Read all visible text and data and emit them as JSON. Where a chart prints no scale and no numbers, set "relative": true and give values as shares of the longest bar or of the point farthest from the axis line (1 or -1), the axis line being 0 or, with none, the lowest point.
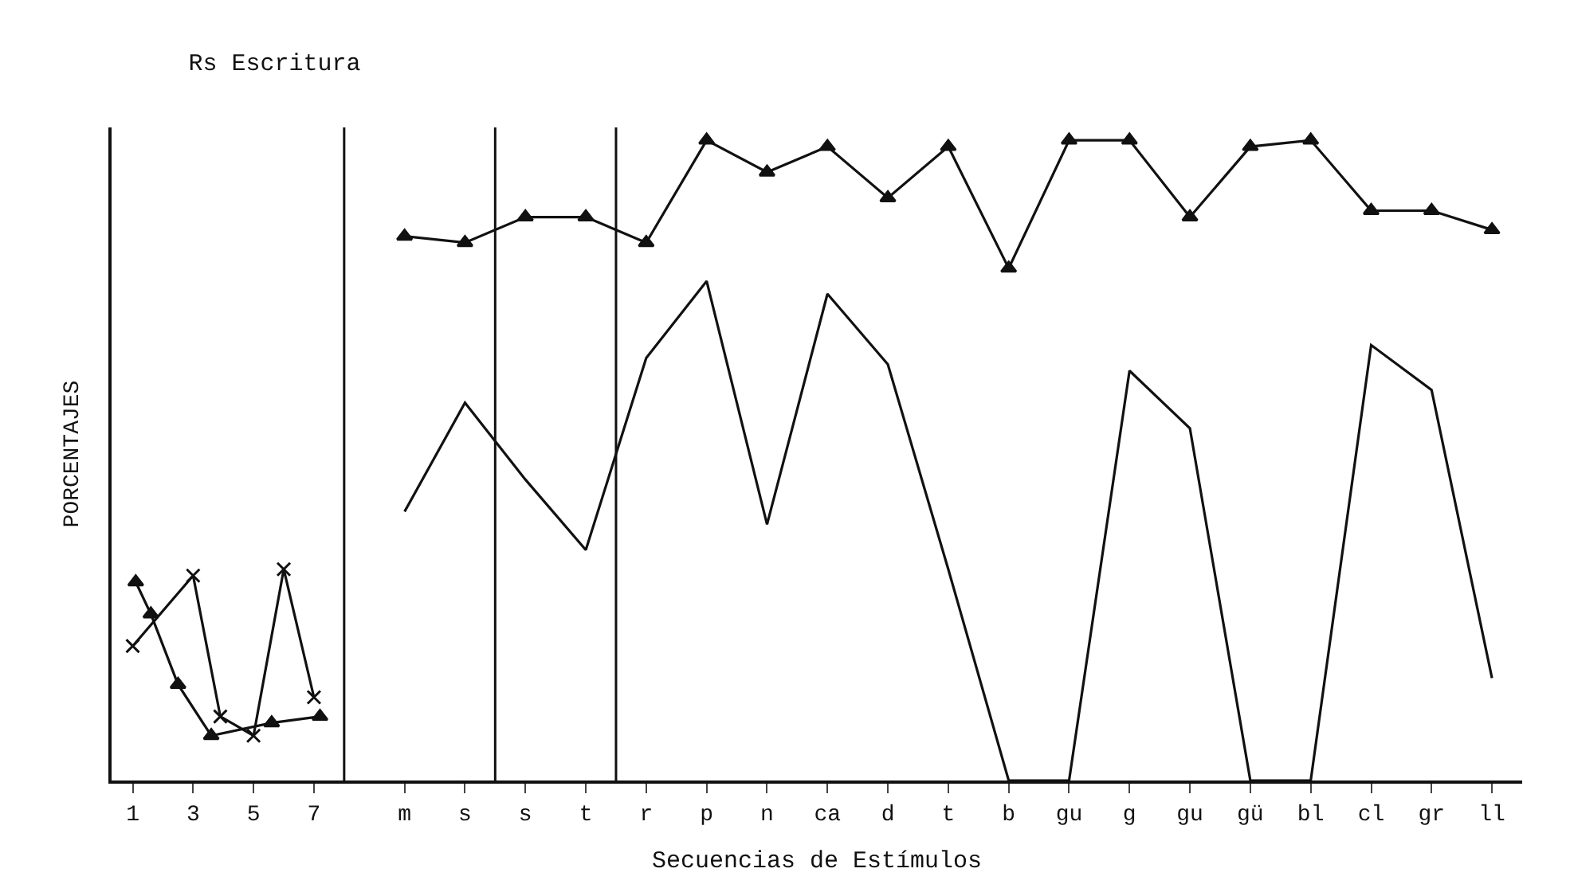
{
  "chart_data": {
    "type": "line",
    "title": "Rs Escritura",
    "xlabel": "Secuencias de Estímulos",
    "ylabel": "PORCENTAJES",
    "relative": true,
    "xlim": [
      0.3,
      47
    ],
    "xticks": [
      {
        "value": 1,
        "label": "1"
      },
      {
        "value": 3,
        "label": "3"
      },
      {
        "value": 5,
        "label": "5"
      },
      {
        "value": 7,
        "label": "7"
      },
      {
        "value": 10,
        "label": "m"
      },
      {
        "value": 12,
        "label": "s"
      },
      {
        "value": 14,
        "label": "s"
      },
      {
        "value": 16,
        "label": "t"
      },
      {
        "value": 18,
        "label": "r"
      },
      {
        "value": 20,
        "label": "p"
      },
      {
        "value": 22,
        "label": "n"
      },
      {
        "value": 24,
        "label": "ca"
      },
      {
        "value": 26,
        "label": "d"
      },
      {
        "value": 28,
        "label": "t"
      },
      {
        "value": 30,
        "label": "b"
      },
      {
        "value": 32,
        "label": "gu"
      },
      {
        "value": 34,
        "label": "g"
      },
      {
        "value": 36,
        "label": "gu"
      },
      {
        "value": 38,
        "label": "gü"
      },
      {
        "value": 40,
        "label": "bl"
      },
      {
        "value": 42,
        "label": "cl"
      },
      {
        "value": 44,
        "label": "gr"
      },
      {
        "value": 46,
        "label": "ll"
      }
    ],
    "series": [
      {
        "color": "#111111",
        "marker": "cross",
        "x": [
          1,
          3,
          3.9,
          5,
          6,
          7
        ],
        "values": [
          0.21,
          0.32,
          0.1,
          0.07,
          0.33,
          0.13
        ]
      },
      {
        "color": "#111111",
        "marker": "triangle",
        "x": [
          1.1,
          1.6,
          2.5,
          3.6,
          5.6,
          7.2
        ],
        "values": [
          0.31,
          0.26,
          0.15,
          0.07,
          0.09,
          0.1
        ]
      },
      {
        "color": "#111111",
        "marker": "triangle",
        "x": [
          10,
          12,
          14,
          16,
          18,
          20,
          22,
          24,
          26,
          28,
          30,
          32,
          34,
          36,
          38,
          40,
          42,
          44,
          46
        ],
        "values": [
          0.85,
          0.84,
          0.88,
          0.88,
          0.84,
          1.0,
          0.95,
          0.99,
          0.91,
          0.99,
          0.8,
          1.0,
          1.0,
          0.88,
          0.99,
          1.0,
          0.89,
          0.89,
          0.86
        ]
      },
      {
        "color": "#111111",
        "marker": "none",
        "x": [
          10,
          12,
          14,
          16,
          18,
          20,
          22,
          24,
          26,
          28,
          30,
          32,
          34,
          36,
          38,
          40,
          42,
          44,
          46
        ],
        "values": [
          0.42,
          0.59,
          0.47,
          0.36,
          0.66,
          0.78,
          0.4,
          0.76,
          0.65,
          0.33,
          0,
          0,
          0.64,
          0.55,
          0,
          0,
          0.68,
          0.61,
          0.16
        ]
      }
    ],
    "ref_lines": [
      {
        "axis": "x",
        "value": 8,
        "color": "#111111"
      },
      {
        "axis": "x",
        "value": 13,
        "color": "#111111"
      },
      {
        "axis": "x",
        "value": 17,
        "color": "#111111"
      }
    ],
    "legend": false
  }
}
